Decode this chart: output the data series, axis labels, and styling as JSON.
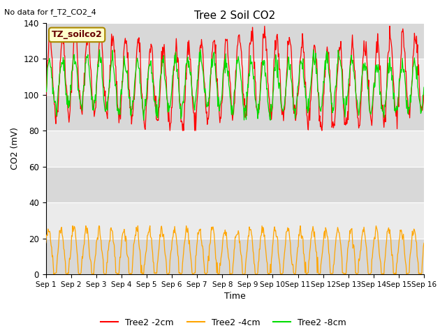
{
  "title": "Tree 2 Soil CO2",
  "no_data_text": "No data for f_T2_CO2_4",
  "ylabel": "CO2 (mV)",
  "xlabel": "Time",
  "xtick_labels": [
    "Sep 1",
    "Sep 2",
    "Sep 3",
    "Sep 4",
    "Sep 5",
    "Sep 6",
    "Sep 7",
    "Sep 8",
    "Sep 9",
    "Sep 10",
    "Sep 11",
    "Sep 12",
    "Sep 13",
    "Sep 14",
    "Sep 15",
    "Sep 16"
  ],
  "ylim": [
    0,
    140
  ],
  "yticks": [
    0,
    20,
    40,
    60,
    80,
    100,
    120,
    140
  ],
  "colors": {
    "red": "#ff0000",
    "orange": "#ffa500",
    "green": "#00dd00",
    "bg_dark": "#d8d8d8",
    "bg_light": "#ebebeb",
    "legend_bg": "#ffffcc",
    "legend_border": "#cccc00"
  },
  "legend_box_label": "TZ_soilco2",
  "legend_entries": [
    "Tree2 -2cm",
    "Tree2 -4cm",
    "Tree2 -8cm"
  ],
  "n_points": 720,
  "days": 15
}
